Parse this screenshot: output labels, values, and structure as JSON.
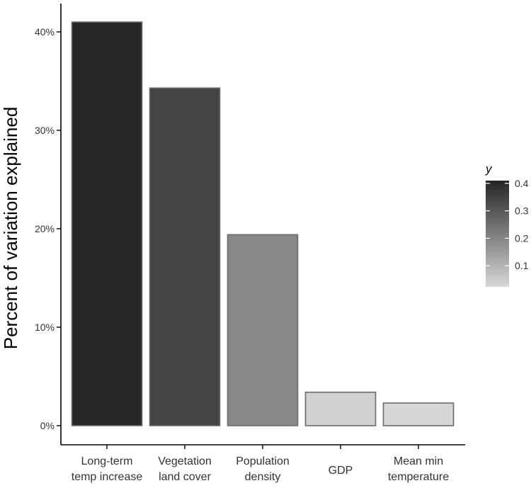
{
  "chart_data": {
    "type": "bar",
    "title": "",
    "xlabel": "",
    "ylabel": "Percent of variation explained",
    "categories": [
      [
        "Long-term",
        "temp increase"
      ],
      [
        "Vegetation",
        "land cover"
      ],
      [
        "Population",
        "density"
      ],
      [
        "GDP"
      ],
      [
        "Mean min",
        "temperature"
      ]
    ],
    "values": [
      0.41,
      0.343,
      0.194,
      0.034,
      0.023
    ],
    "ylim": [
      0,
      0.43
    ],
    "yticks": [
      {
        "value": 0.0,
        "label": "0%"
      },
      {
        "value": 0.1,
        "label": "10%"
      },
      {
        "value": 0.2,
        "label": "20%"
      },
      {
        "value": 0.3,
        "label": "30%"
      },
      {
        "value": 0.4,
        "label": "40%"
      }
    ],
    "grid": false,
    "legend": {
      "title": "y",
      "position": "right",
      "range": [
        0.023,
        0.41
      ],
      "ticks": [
        {
          "value": 0.1,
          "label": "0.1"
        },
        {
          "value": 0.2,
          "label": "0.2"
        },
        {
          "value": 0.3,
          "label": "0.3"
        },
        {
          "value": 0.4,
          "label": "0.4"
        }
      ]
    },
    "colors": {
      "low": "#d6d6d6",
      "high": "#262626",
      "bar_outline": "#6b6b6b",
      "axis": "#000000",
      "text": "#000000",
      "tick_text": "#333333"
    }
  }
}
